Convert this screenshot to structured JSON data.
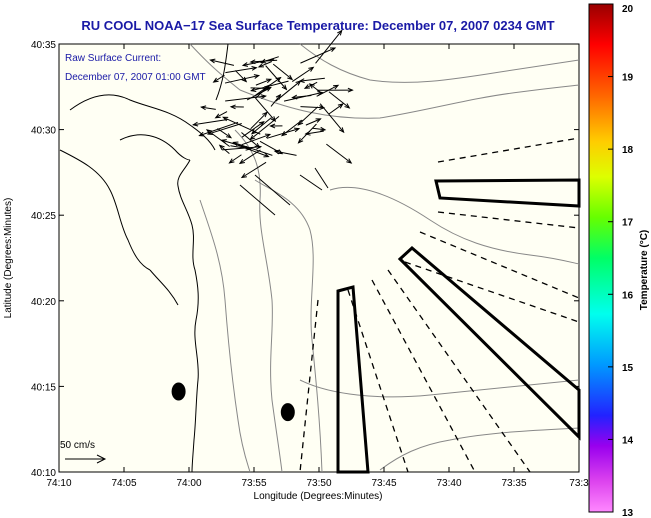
{
  "chart_data": {
    "type": "map-plot",
    "title": "RU COOL  NOAA−17  Sea Surface Temperature:  December 07, 2007 0234 GMT",
    "legend_line1": "Raw Surface Current:",
    "legend_line2": "December 07, 2007 01:00 GMT",
    "scale_label": "50 cm/s",
    "xlabel": "Longitude (Degrees:Minutes)",
    "ylabel": "Latitude (Degrees:Minutes)",
    "x_ticks": [
      "74:10",
      "74:05",
      "74:00",
      "73:55",
      "73:50",
      "73:45",
      "73:40",
      "73:35",
      "73:3"
    ],
    "y_ticks": [
      "40:10",
      "40:15",
      "40:20",
      "40:25",
      "40:30",
      "40:35"
    ],
    "xlim_west_minutes_from_74_10": [
      0,
      40
    ],
    "ylim_minutes_after_40": [
      10,
      35
    ],
    "colorbar": {
      "label": "Temperature (°C)",
      "ticks": [
        "20",
        "19",
        "18",
        "17",
        "16",
        "15",
        "14",
        "13"
      ],
      "range": [
        13,
        20
      ]
    },
    "markers": [
      {
        "lon_minutes_west_of_74_10": 9.2,
        "lat_minutes": 14.7
      },
      {
        "lon_minutes_west_of_74_10": 17.6,
        "lat_minutes": 13.5
      }
    ]
  }
}
